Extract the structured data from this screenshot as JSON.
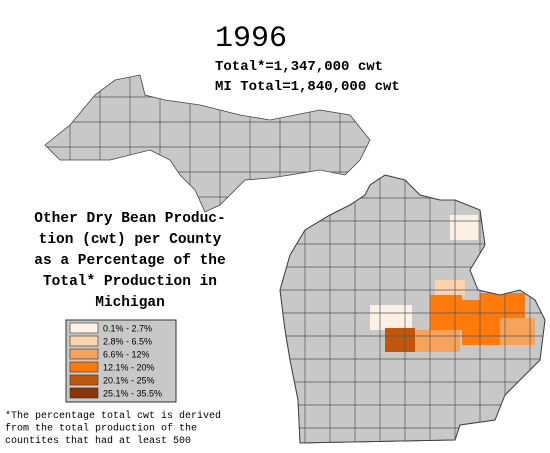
{
  "title": "1996",
  "totals": [
    "Total*=1,347,000 cwt",
    "MI Total=1,840,000 cwt"
  ],
  "description": [
    "Other Dry Bean Produc-",
    "tion (cwt) per County",
    "as a Percentage of the",
    "Total* Production in",
    "Michigan"
  ],
  "legend": [
    {
      "label": "0.1% - 2.7%",
      "color": "#fdf1e6"
    },
    {
      "label": "2.8% - 6.5%",
      "color": "#fcd3ad"
    },
    {
      "label": "6.6% - 12%",
      "color": "#f7a35c"
    },
    {
      "label": "12.1% - 20%",
      "color": "#ff7a0a"
    },
    {
      "label": "20.1% - 25%",
      "color": "#c4560c"
    },
    {
      "label": "25.1% - 35.5%",
      "color": "#8a3508"
    }
  ],
  "footnote": [
    "*The percentage total cwt is derived",
    "from the total production of the",
    "countites that had at least 500"
  ]
}
